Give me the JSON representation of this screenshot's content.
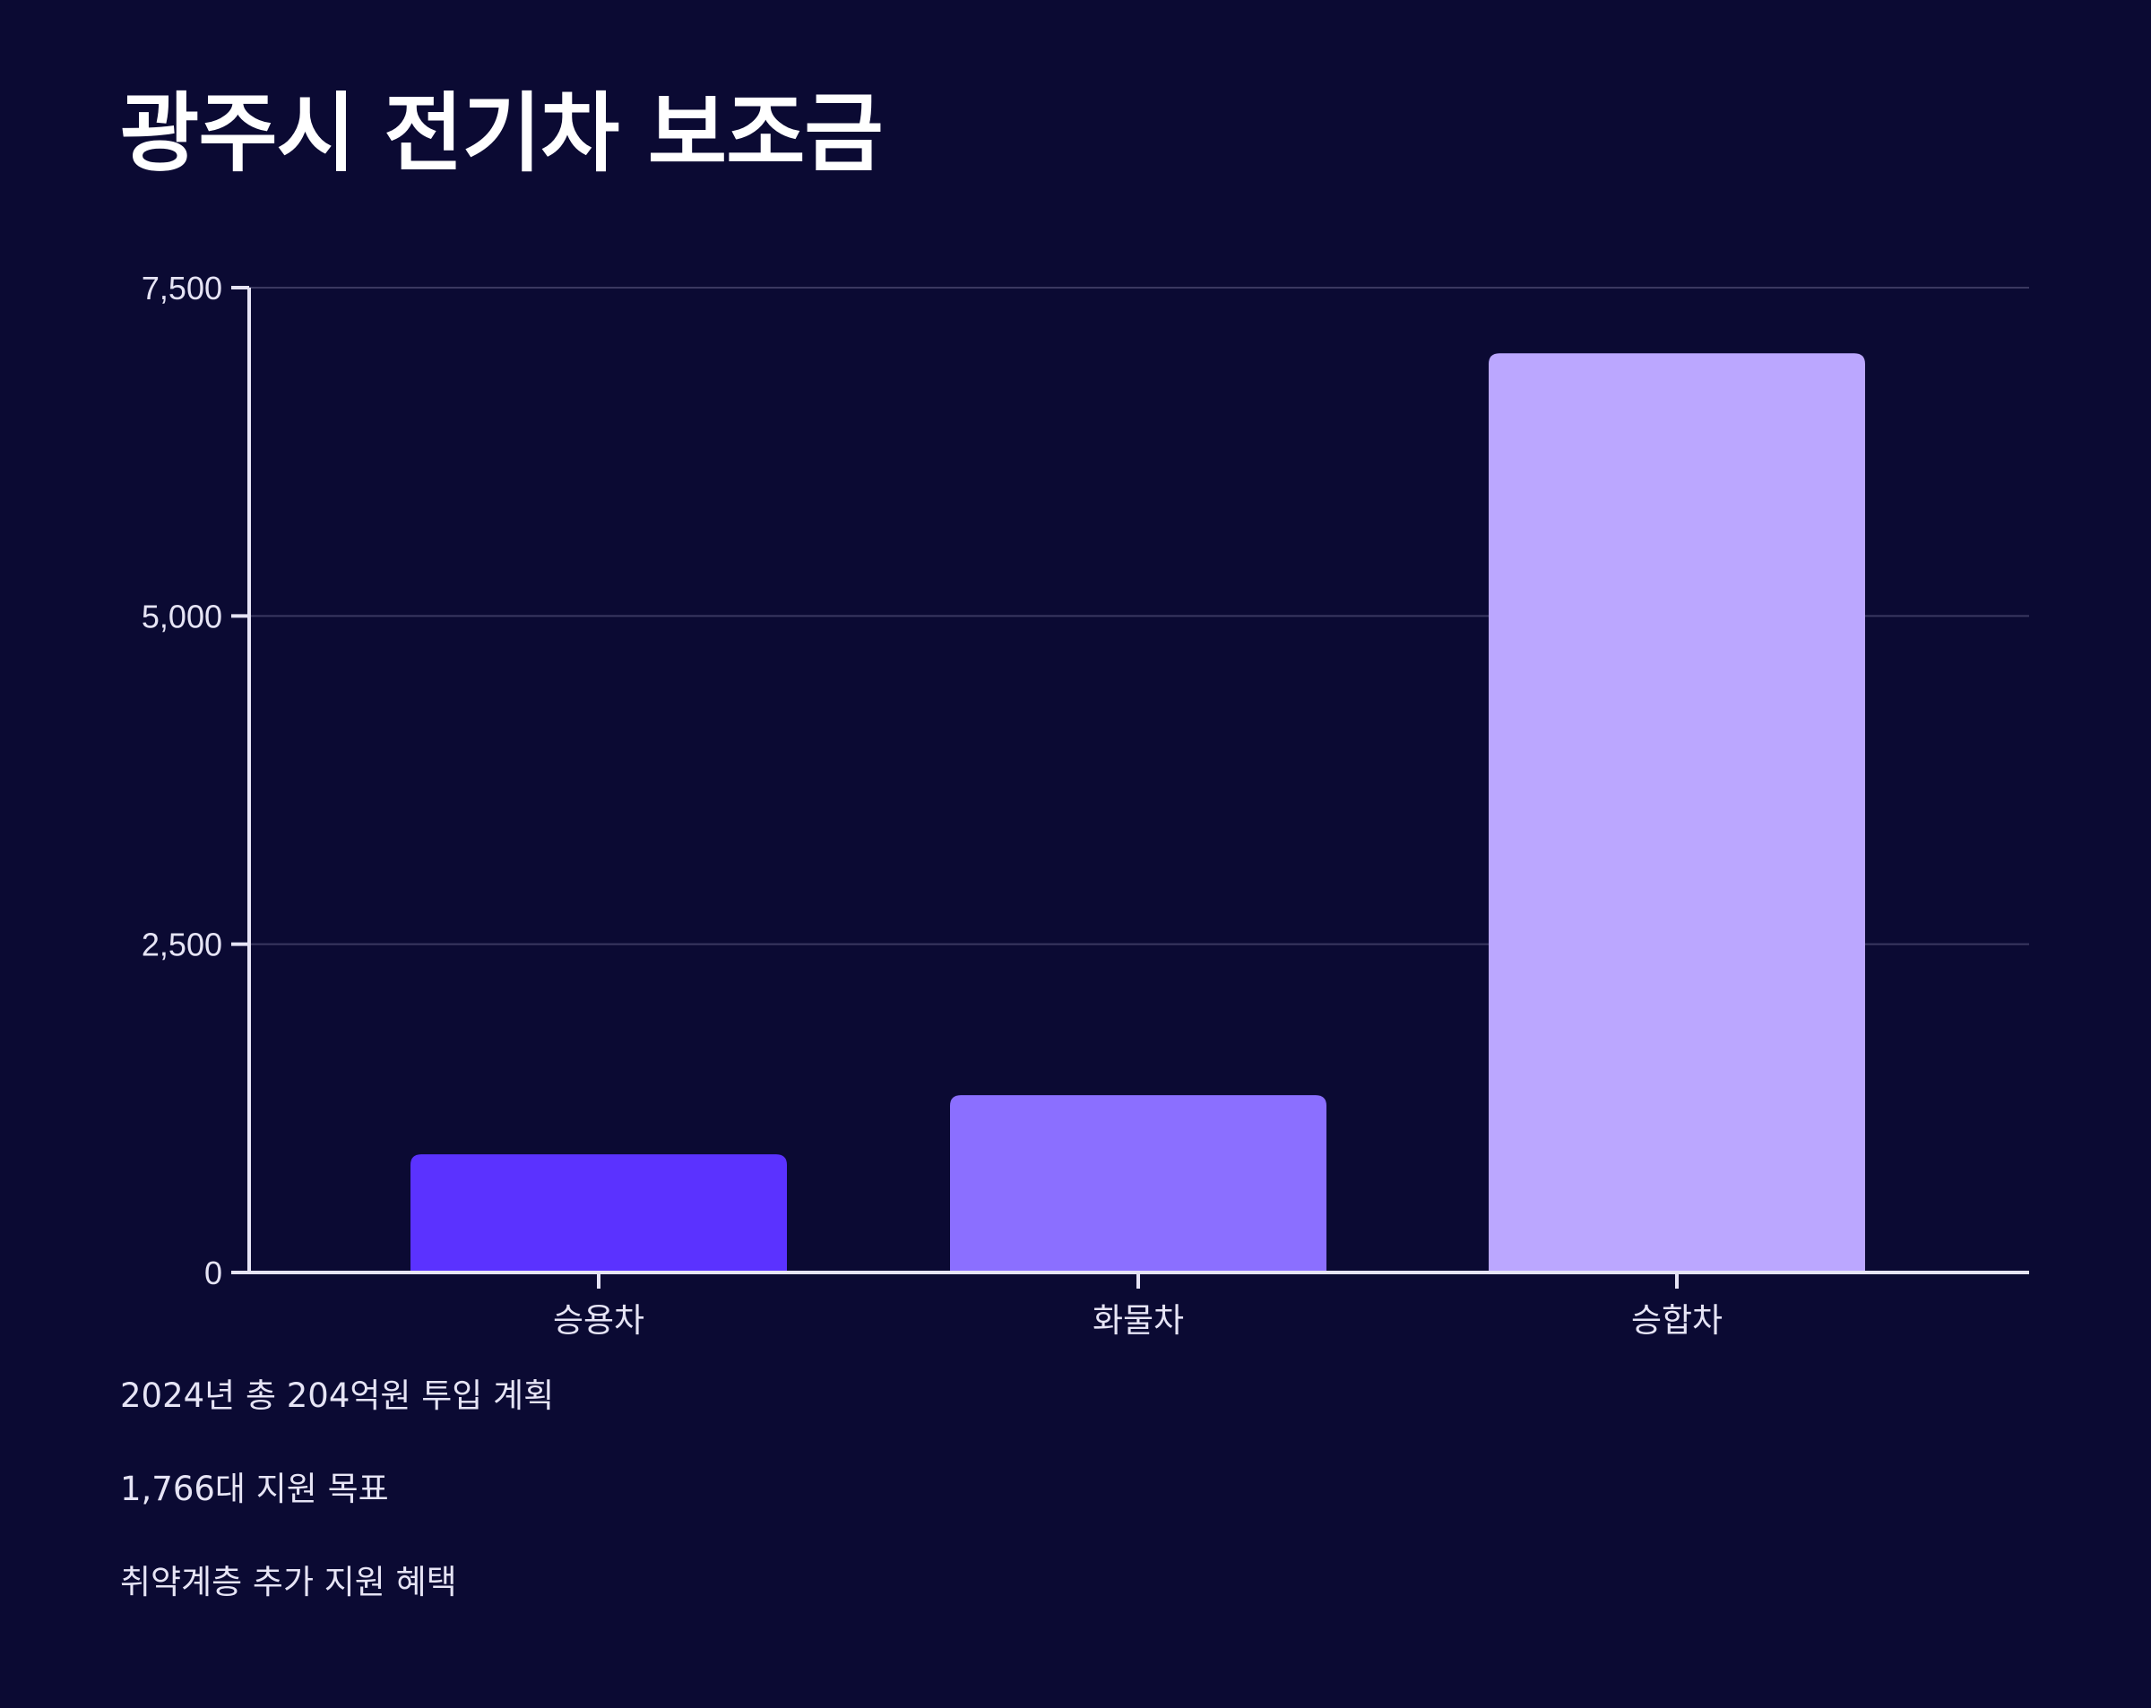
{
  "colors": {
    "background": "#0b0a33",
    "axis": "#e6e4f5",
    "grid": "#3a3860",
    "text": "#e6e4f5",
    "title": "#ffffff"
  },
  "chart_data": {
    "type": "bar",
    "title": "광주시 전기차 보조금",
    "xlabel": "",
    "ylabel": "",
    "categories": [
      "승용차",
      "화물차",
      "승합차"
    ],
    "values": [
      900,
      1350,
      7000
    ],
    "bar_colors": [
      "#5b32ff",
      "#8b6fff",
      "#bba7ff"
    ],
    "ylim": [
      0,
      7500
    ],
    "yticks": [
      0,
      2500,
      5000,
      7500
    ],
    "ytick_labels": [
      "0",
      "2,500",
      "5,000",
      "7,500"
    ],
    "grid": true,
    "legend": "none"
  },
  "notes": [
    "2024년 총 204억원 투입 계획",
    "1,766대 지원 목표",
    "취약계층 추가 지원 혜택"
  ]
}
